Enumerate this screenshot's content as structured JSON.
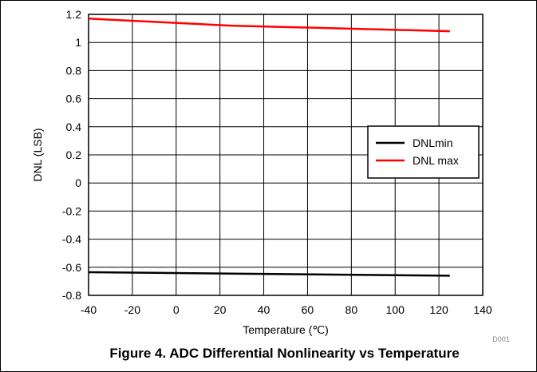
{
  "figure": {
    "caption": "Figure 4. ADC Differential Nonlinearity vs Temperature",
    "code": "D001"
  },
  "chart_data": {
    "type": "line",
    "xlabel": "Temperature (℃)",
    "ylabel": "DNL (LSB)",
    "xlim": [
      -40,
      140
    ],
    "ylim": [
      -0.8,
      1.2
    ],
    "xticks": [
      "-40",
      "-20",
      "0",
      "20",
      "40",
      "60",
      "80",
      "100",
      "120",
      "140"
    ],
    "yticks": [
      "1.2",
      "1",
      "0.8",
      "0.6",
      "0.4",
      "0.2",
      "0",
      "-0.2",
      "-0.4",
      "-0.6",
      "-0.8"
    ],
    "grid": true,
    "legend_position": "right",
    "series": [
      {
        "name": "DNLmin",
        "color": "#000000",
        "x": [
          -40,
          25,
          125
        ],
        "y": [
          -0.635,
          -0.645,
          -0.66
        ]
      },
      {
        "name": "DNL max",
        "color": "#ff0000",
        "x": [
          -40,
          25,
          125
        ],
        "y": [
          1.17,
          1.12,
          1.08
        ]
      }
    ]
  }
}
